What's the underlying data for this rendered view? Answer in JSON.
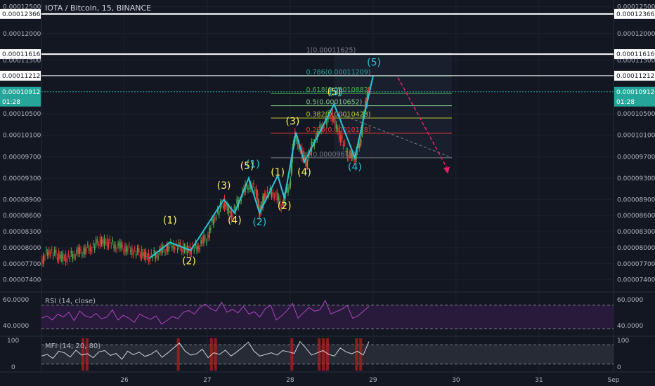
{
  "header": {
    "title": "IOTA / Bitcoin, 15, BINANCE"
  },
  "colors": {
    "background": "#131722",
    "bull_candle": "#4caf50",
    "bear_candle": "#e53935",
    "wave_line": "#26c6da",
    "label_yellow": "#ffee58",
    "label_cyan": "#26c6da",
    "projection": "#e91e63",
    "rsi_line": "#ab47bc",
    "mfi_line": "#cfd2d8",
    "last_price": "#26a69a"
  },
  "chart_data": {
    "type": "candlestick",
    "title": "IOTA / Bitcoin, 15, BINANCE",
    "ylim": [
      7.2e-05,
      0.000126
    ],
    "x_ticks": [
      "26",
      "27",
      "28",
      "29",
      "30",
      "31",
      "Sep"
    ],
    "y_ticks": [
      "0.00012500",
      "0.00012000",
      "0.00011500",
      "0.00010500",
      "0.00010100",
      "0.00009700",
      "0.00009300",
      "0.00008900",
      "0.00008600",
      "0.00008300",
      "0.00008000",
      "0.00007700",
      "0.00007400"
    ],
    "price_series": [
      {
        "x": 25.0,
        "y": 7.75e-05
      },
      {
        "x": 25.1,
        "y": 7.95e-05
      },
      {
        "x": 25.2,
        "y": 7.85e-05
      },
      {
        "x": 25.3,
        "y": 7.8e-05
      },
      {
        "x": 25.4,
        "y": 7.9e-05
      },
      {
        "x": 25.5,
        "y": 7.95e-05
      },
      {
        "x": 25.6,
        "y": 8e-05
      },
      {
        "x": 25.7,
        "y": 8.12e-05
      },
      {
        "x": 25.8,
        "y": 8.1e-05
      },
      {
        "x": 25.9,
        "y": 8.05e-05
      },
      {
        "x": 26.0,
        "y": 8e-05
      },
      {
        "x": 26.1,
        "y": 7.95e-05
      },
      {
        "x": 26.2,
        "y": 7.9e-05
      },
      {
        "x": 26.3,
        "y": 7.82e-05
      },
      {
        "x": 26.4,
        "y": 7.9e-05
      },
      {
        "x": 26.5,
        "y": 8e-05
      },
      {
        "x": 26.6,
        "y": 8.05e-05
      },
      {
        "x": 26.7,
        "y": 8e-05
      },
      {
        "x": 26.8,
        "y": 7.95e-05
      },
      {
        "x": 26.9,
        "y": 8.05e-05
      },
      {
        "x": 27.0,
        "y": 8.2e-05
      },
      {
        "x": 27.1,
        "y": 8.6e-05
      },
      {
        "x": 27.2,
        "y": 8.85e-05
      },
      {
        "x": 27.3,
        "y": 8.6e-05
      },
      {
        "x": 27.4,
        "y": 8.95e-05
      },
      {
        "x": 27.5,
        "y": 9.2e-05
      },
      {
        "x": 27.6,
        "y": 9.05e-05
      },
      {
        "x": 27.63,
        "y": 8.65e-05
      },
      {
        "x": 27.7,
        "y": 9e-05
      },
      {
        "x": 27.8,
        "y": 9.05e-05
      },
      {
        "x": 27.9,
        "y": 8.8e-05
      },
      {
        "x": 28.0,
        "y": 9.2e-05
      },
      {
        "x": 28.05,
        "y": 0.000101
      },
      {
        "x": 28.15,
        "y": 9.75e-05
      },
      {
        "x": 28.2,
        "y": 9.6e-05
      },
      {
        "x": 28.3,
        "y": 0.0001005
      },
      {
        "x": 28.4,
        "y": 0.000103
      },
      {
        "x": 28.5,
        "y": 0.000105
      },
      {
        "x": 28.6,
        "y": 0.000101
      },
      {
        "x": 28.7,
        "y": 9.75e-05
      },
      {
        "x": 28.78,
        "y": 9.68e-05
      },
      {
        "x": 28.85,
        "y": 0.0001
      },
      {
        "x": 28.9,
        "y": 0.000106
      },
      {
        "x": 28.95,
        "y": 0.0001091
      }
    ],
    "wave_path": [
      {
        "x": 26.3,
        "y": 7.8e-05
      },
      {
        "x": 26.55,
        "y": 8.1e-05
      },
      {
        "x": 26.8,
        "y": 7.95e-05
      },
      {
        "x": 27.2,
        "y": 8.9e-05
      },
      {
        "x": 27.33,
        "y": 8.65e-05
      },
      {
        "x": 27.5,
        "y": 9.3e-05
      },
      {
        "x": 27.63,
        "y": 8.65e-05
      },
      {
        "x": 27.85,
        "y": 9.35e-05
      },
      {
        "x": 27.93,
        "y": 8.92e-05
      },
      {
        "x": 28.07,
        "y": 0.0001015
      },
      {
        "x": 28.17,
        "y": 9.6e-05
      },
      {
        "x": 28.53,
        "y": 0.0001068
      },
      {
        "x": 28.78,
        "y": 9.68e-05
      },
      {
        "x": 29.0,
        "y": 0.0001121
      }
    ],
    "wave_labels": [
      {
        "text": "(1)",
        "x": 26.55,
        "y": 8.45e-05,
        "color": "yellow"
      },
      {
        "text": "(2)",
        "x": 26.78,
        "y": 7.69e-05,
        "color": "yellow"
      },
      {
        "text": "(3)",
        "x": 27.2,
        "y": 9.1e-05,
        "color": "yellow"
      },
      {
        "text": "(4)",
        "x": 27.33,
        "y": 8.45e-05,
        "color": "yellow"
      },
      {
        "text": "(5)",
        "x": 27.48,
        "y": 9.47e-05,
        "color": "yellow"
      },
      {
        "text": "(1)",
        "x": 27.55,
        "y": 9.5e-05,
        "color": "cyan"
      },
      {
        "text": "(2)",
        "x": 27.63,
        "y": 8.42e-05,
        "color": "cyan"
      },
      {
        "text": "(1)",
        "x": 27.85,
        "y": 9.35e-05,
        "color": "yellow"
      },
      {
        "text": "(2)",
        "x": 27.93,
        "y": 8.72e-05,
        "color": "yellow"
      },
      {
        "text": "(3)",
        "x": 28.03,
        "y": 0.000103,
        "color": "yellow"
      },
      {
        "text": "(4)",
        "x": 28.17,
        "y": 9.35e-05,
        "color": "yellow"
      },
      {
        "text": "(5)",
        "x": 28.53,
        "y": 0.0001085,
        "color": "yellow"
      },
      {
        "text": "(3)",
        "x": 28.55,
        "y": 0.0001085,
        "color": "cyan"
      },
      {
        "text": "(4)",
        "x": 28.78,
        "y": 9.45e-05,
        "color": "cyan"
      },
      {
        "text": "(5)",
        "x": 29.01,
        "y": 0.000114,
        "color": "cyan"
      }
    ],
    "fib_levels": [
      {
        "label": "1(0.00011625)",
        "ratio": 1,
        "color": "#787b86"
      },
      {
        "label": "0.786(0.00011209)",
        "ratio": 0.786,
        "color": "#26a69a"
      },
      {
        "label": "0.618(0.00010882)",
        "ratio": 0.618,
        "color": "#4caf50"
      },
      {
        "label": "0.5(0.00010652)",
        "ratio": 0.5,
        "color": "#81c784"
      },
      {
        "label": "0.382(0.00010423)",
        "ratio": 0.382,
        "color": "#c0ca33"
      },
      {
        "label": "0.236(0.00010138)",
        "ratio": 0.236,
        "color": "#e53935"
      },
      {
        "label": "0(0.00009679)",
        "ratio": 0,
        "color": "#787b86"
      }
    ],
    "horizontal_levels": [
      {
        "label": "0.00012366",
        "value": 0.00012366
      },
      {
        "label": "0.00011616",
        "value": 0.00011616
      },
      {
        "label": "0.00011212",
        "value": 0.00011212
      }
    ],
    "last_price": {
      "label": "0.00010912",
      "value": 0.00010912,
      "countdown": "01:28"
    },
    "rsi": {
      "label": "RSI (14, close)",
      "value_label": "60.0000",
      "lower_label": "40.0000",
      "upper_band": 70,
      "lower_band": 30,
      "values": [
        48,
        52,
        45,
        55,
        50,
        58,
        44,
        60,
        52,
        49,
        56,
        47,
        50,
        62,
        45,
        53,
        48,
        41,
        55,
        50,
        46,
        52,
        38,
        44,
        51,
        47,
        58,
        61,
        55,
        66,
        72,
        64,
        60,
        75,
        58,
        63,
        57,
        68,
        55,
        59,
        50,
        64,
        70,
        45,
        52,
        61,
        73,
        48,
        57,
        66,
        60,
        62,
        78,
        55,
        59,
        63,
        70,
        48,
        52,
        60,
        68
      ]
    },
    "mfi": {
      "label": "MFI (14, 20, 80)",
      "upper_label": "100",
      "lower_label": "0",
      "values": [
        45,
        50,
        38,
        60,
        55,
        42,
        63,
        48,
        52,
        40,
        58,
        62,
        47,
        53,
        35,
        60,
        49,
        57,
        44,
        50,
        62,
        41,
        55,
        70,
        85,
        60,
        48,
        52,
        66,
        40,
        55,
        50,
        63,
        45,
        58,
        72,
        88,
        60,
        45,
        50,
        55,
        48,
        62,
        58,
        53,
        90,
        70,
        48,
        55,
        62,
        50,
        45,
        70,
        58,
        52,
        60,
        48,
        90
      ]
    },
    "mfi_ob_zones": [
      25.5,
      25.55,
      26.65,
      27.05,
      27.1,
      28.02,
      28.35,
      28.4,
      28.45,
      28.8,
      28.85
    ]
  }
}
